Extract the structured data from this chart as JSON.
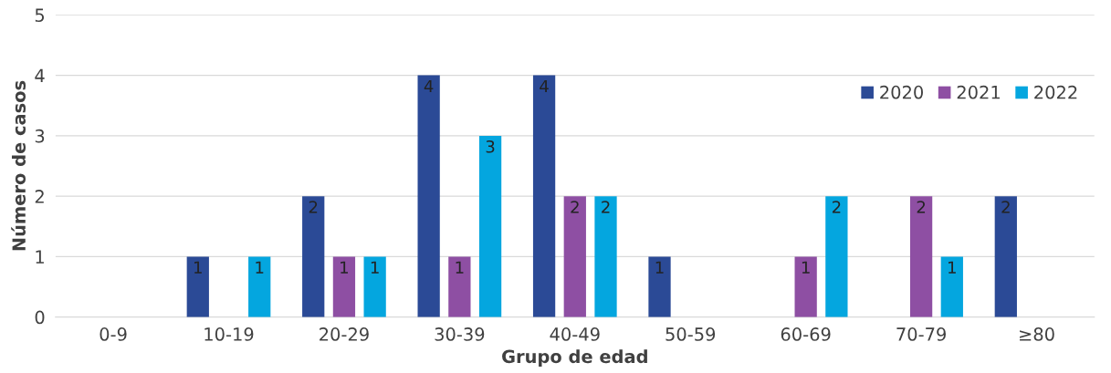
{
  "chart_data": {
    "type": "bar",
    "xlabel": "Grupo de edad",
    "ylabel": "Número de casos",
    "categories": [
      "0-9",
      "10-19",
      "20-29",
      "30-39",
      "40-49",
      "50-59",
      "60-69",
      "70-79",
      "≥80"
    ],
    "series": [
      {
        "name": "2020",
        "color": "#2b4a96",
        "values": [
          0,
          1,
          2,
          4,
          4,
          1,
          0,
          0,
          2
        ],
        "value_labels": [
          null,
          "1",
          "2",
          "4",
          "4",
          "1",
          null,
          null,
          "2"
        ]
      },
      {
        "name": "2021",
        "color": "#8e4fa3",
        "values": [
          0,
          0,
          1,
          1,
          2,
          0,
          1,
          2,
          0
        ],
        "value_labels": [
          null,
          null,
          "1",
          "1",
          "2",
          null,
          "1",
          "2",
          null
        ]
      },
      {
        "name": "2022",
        "color": "#04a6df",
        "values": [
          0,
          1,
          1,
          3,
          2,
          0,
          2,
          1,
          0
        ],
        "value_labels": [
          null,
          "1",
          "1",
          "3",
          "2",
          null,
          "2",
          "1",
          null
        ]
      }
    ],
    "ylim": [
      0,
      5
    ],
    "yticks": [
      0,
      1,
      2,
      3,
      4,
      5
    ],
    "grid": "y",
    "legend": "top right"
  }
}
